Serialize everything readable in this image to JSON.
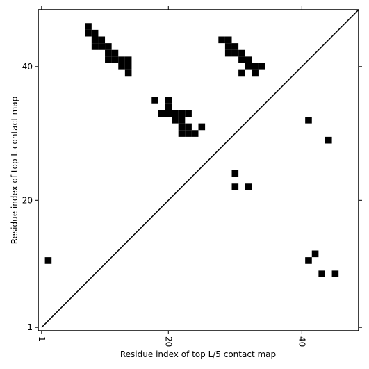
{
  "chart_data": {
    "type": "scatter",
    "marker": "square",
    "color": "#000000",
    "x_label": "Residue index of top L/5 contact map",
    "y_label": "Residue index of top L contact map",
    "xlim": [
      0.5,
      48.5
    ],
    "ylim": [
      0.5,
      48.5
    ],
    "xticks": [
      1,
      20,
      40
    ],
    "yticks": [
      1,
      20,
      40
    ],
    "diagonal": true,
    "x": [
      8,
      8,
      9,
      9,
      9,
      10,
      10,
      11,
      11,
      11,
      12,
      12,
      13,
      13,
      14,
      14,
      14,
      18,
      20,
      20,
      20,
      19,
      21,
      21,
      22,
      22,
      22,
      22,
      23,
      23,
      23,
      24,
      25,
      28,
      29,
      29,
      29,
      30,
      30,
      31,
      31,
      31,
      32,
      32,
      33,
      33,
      34,
      30,
      30,
      32,
      41,
      44,
      41,
      42,
      43,
      45,
      2
    ],
    "y": [
      46,
      45,
      45,
      44,
      43,
      44,
      43,
      43,
      42,
      41,
      42,
      41,
      41,
      40,
      41,
      40,
      39,
      35,
      35,
      34,
      33,
      33,
      33,
      32,
      33,
      32,
      31,
      30,
      33,
      31,
      30,
      30,
      31,
      44,
      44,
      43,
      42,
      43,
      42,
      42,
      41,
      39,
      41,
      40,
      40,
      39,
      40,
      24,
      22,
      22,
      32,
      29,
      11,
      12,
      9,
      9,
      11
    ]
  }
}
